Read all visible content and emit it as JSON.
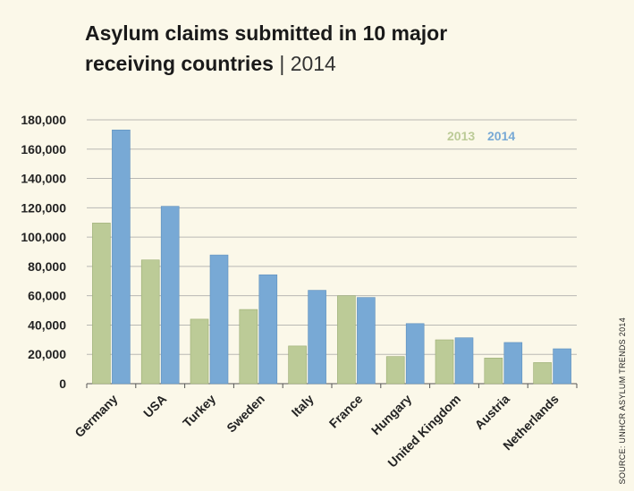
{
  "title": {
    "line1": "Asylum claims submitted in 10 major",
    "line2": "receiving countries",
    "separator": "|",
    "year": "2014"
  },
  "source": "SOURCE: UNHCR ASYLUM TRENDS 2014",
  "chart_data": {
    "type": "bar",
    "title": "Asylum claims submitted in 10 major receiving countries | 2014",
    "categories": [
      "Germany",
      "USA",
      "Turkey",
      "Sweden",
      "Italy",
      "France",
      "Hungary",
      "United Kingdom",
      "Austria",
      "Netherlands"
    ],
    "series": [
      {
        "name": "2013",
        "color": "#bccb97",
        "values": [
          109600,
          84400,
          44000,
          50600,
          25700,
          60000,
          18500,
          29900,
          17500,
          14400
        ]
      },
      {
        "name": "2014",
        "color": "#78a9d5",
        "values": [
          173100,
          121000,
          87800,
          74300,
          63700,
          58800,
          41000,
          31300,
          28100,
          23800
        ]
      }
    ],
    "yticks": [
      "0",
      "20,000",
      "40,000",
      "60,000",
      "80,000",
      "100,000",
      "120,000",
      "140,000",
      "160,000",
      "180,000"
    ],
    "ylim": [
      0,
      180000
    ],
    "grid": true,
    "legend_position": "top-right"
  }
}
